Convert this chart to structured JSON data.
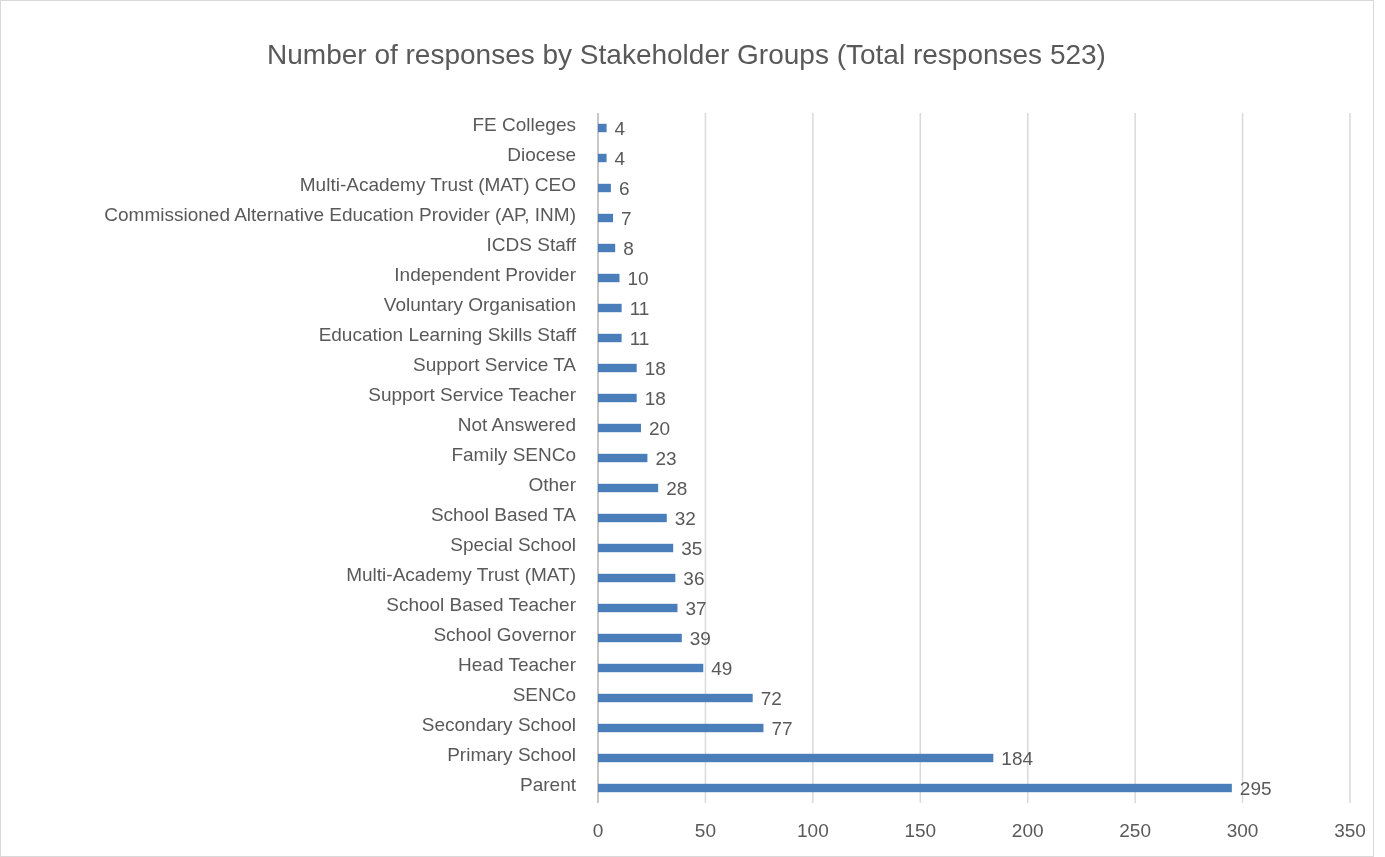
{
  "chart_data": {
    "type": "bar",
    "orientation": "horizontal",
    "title": "Number of responses by Stakeholder Groups (Total responses 523)",
    "categories": [
      "FE Colleges",
      "Diocese",
      "Multi-Academy Trust (MAT) CEO",
      "Commissioned Alternative Education Provider (AP, INM)",
      "ICDS Staff",
      "Independent Provider",
      "Voluntary Organisation",
      "Education Learning Skills Staff",
      "Support Service TA",
      "Support Service Teacher",
      "Not Answered",
      "Family SENCo",
      "Other",
      "School Based TA",
      "Special School",
      "Multi-Academy Trust (MAT)",
      "School Based Teacher",
      "School Governor",
      "Head Teacher",
      "SENCo",
      "Secondary School",
      "Primary School",
      "Parent"
    ],
    "values": [
      4,
      4,
      6,
      7,
      8,
      10,
      11,
      11,
      18,
      18,
      20,
      23,
      28,
      32,
      35,
      36,
      37,
      39,
      49,
      72,
      77,
      184,
      295
    ],
    "color": "#4a7ebb",
    "xlim": [
      0,
      350
    ],
    "xticks": [
      0,
      50,
      100,
      150,
      200,
      250,
      300,
      350
    ],
    "grid": "x",
    "data_labels": true
  }
}
